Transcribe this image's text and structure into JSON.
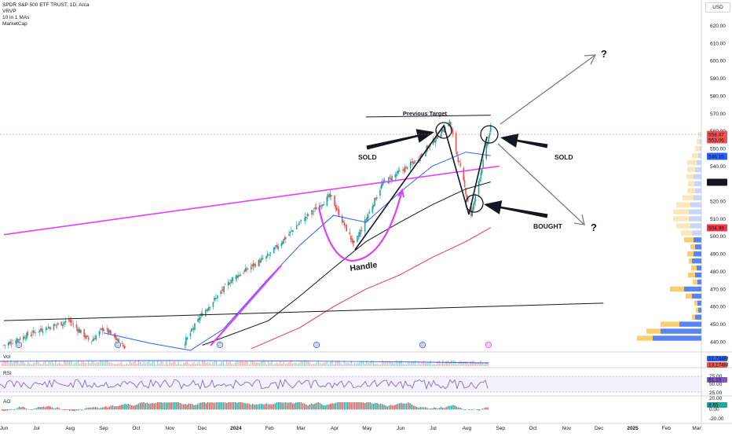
{
  "legend": {
    "title": "SPDR S&P 500 ETF TRUST, 1D, Arca",
    "line2": "VRVP",
    "line3": "10 in 1 MAs",
    "line4": "MarketCap"
  },
  "currency": "USD",
  "chart_data": {
    "type": "candlestick",
    "y_ticks": [
      440,
      450,
      460,
      470,
      480,
      490,
      500,
      510,
      520,
      530,
      540,
      550,
      560,
      570,
      580,
      590,
      600,
      610,
      620
    ],
    "ylim": [
      435,
      628
    ],
    "x_ticks": [
      "Jun",
      "Jul",
      "Aug",
      "Sep",
      "Oct",
      "Nov",
      "Dec",
      "2024",
      "Feb",
      "Mar",
      "Apr",
      "May",
      "Jun",
      "Jul",
      "Aug",
      "Sep",
      "Oct",
      "Nov",
      "Dec",
      "2025",
      "Feb",
      "Mar"
    ],
    "price_tags": [
      {
        "value": "558.47",
        "color": "#ef5350"
      },
      {
        "value": "553.06",
        "color": "#ef5350"
      },
      {
        "value": "546.15",
        "color": "#2962ff"
      },
      {
        "value": "531.23",
        "color": "#131722"
      },
      {
        "value": "504.99",
        "color": "#f23645"
      }
    ],
    "price_path": [
      [
        "2023-06-01",
        438
      ],
      [
        "2023-07-01",
        446
      ],
      [
        "2023-07-31",
        452
      ],
      [
        "2023-08-20",
        440
      ],
      [
        "2023-09-01",
        448
      ],
      [
        "2023-09-20",
        437
      ],
      [
        "2023-10-27",
        411
      ],
      [
        "2023-11-15",
        440
      ],
      [
        "2023-12-01",
        456
      ],
      [
        "2023-12-29",
        476
      ],
      [
        "2024-01-31",
        489
      ],
      [
        "2024-02-29",
        508
      ],
      [
        "2024-03-28",
        523
      ],
      [
        "2024-04-19",
        495
      ],
      [
        "2024-05-15",
        530
      ],
      [
        "2024-06-15",
        543
      ],
      [
        "2024-07-16",
        565
      ],
      [
        "2024-08-05",
        512
      ],
      [
        "2024-08-23",
        562
      ]
    ],
    "moving_averages": [
      {
        "color": "#2962ff",
        "points": [
          [
            "2023-09-01",
            445
          ],
          [
            "2023-10-15",
            439
          ],
          [
            "2023-11-20",
            434
          ],
          [
            "2023-12-20",
            447
          ],
          [
            "2024-01-31",
            476
          ],
          [
            "2024-02-29",
            495
          ],
          [
            "2024-03-31",
            512
          ],
          [
            "2024-04-30",
            508
          ],
          [
            "2024-05-31",
            525
          ],
          [
            "2024-06-30",
            540
          ],
          [
            "2024-07-31",
            548
          ],
          [
            "2024-08-23",
            546
          ]
        ]
      },
      {
        "color": "#131722",
        "points": [
          [
            "2023-12-01",
            438
          ],
          [
            "2024-01-31",
            452
          ],
          [
            "2024-02-29",
            466
          ],
          [
            "2024-03-31",
            482
          ],
          [
            "2024-04-30",
            497
          ],
          [
            "2024-05-31",
            508
          ],
          [
            "2024-06-30",
            518
          ],
          [
            "2024-07-31",
            527
          ],
          [
            "2024-08-23",
            531
          ]
        ]
      },
      {
        "color": "#f23645",
        "points": [
          [
            "2024-01-15",
            436
          ],
          [
            "2024-02-29",
            448
          ],
          [
            "2024-03-31",
            460
          ],
          [
            "2024-04-30",
            470
          ],
          [
            "2024-05-31",
            478
          ],
          [
            "2024-06-30",
            488
          ],
          [
            "2024-07-31",
            497
          ],
          [
            "2024-08-23",
            505
          ]
        ]
      }
    ],
    "trendlines": [
      {
        "name": "magenta-trendline",
        "color": "#e040fb",
        "from": [
          "2023-06-01",
          501
        ],
        "to": [
          "2024-08-31",
          540
        ]
      },
      {
        "name": "black-trendline",
        "color": "#131722",
        "from": [
          "2023-06-01",
          452
        ],
        "to": [
          "2024-12-05",
          462
        ]
      },
      {
        "name": "previous-target-line",
        "color": "#131722",
        "from": [
          "2024-04-30",
          568
        ],
        "to": [
          "2024-08-23",
          569
        ]
      }
    ],
    "annotations": {
      "previous_target": "Previous Target",
      "sold_left": "SOLD",
      "sold_right": "SOLD",
      "bought": "BOUGHT",
      "handle": "Handle",
      "question_up": "?",
      "question_down": "?"
    },
    "volume_pane": {
      "label": "Vol",
      "values": [
        "51.744M",
        "13.174M"
      ]
    },
    "rsi_pane": {
      "label": "RSI",
      "values": [
        "61.10",
        "50.00"
      ],
      "ticks": [
        "75.00",
        "50.00",
        "25.00"
      ]
    },
    "ao_pane": {
      "label": "AO",
      "values": [
        "8.65"
      ],
      "ticks": [
        "20.00",
        "0.00",
        "-20.00"
      ]
    }
  }
}
